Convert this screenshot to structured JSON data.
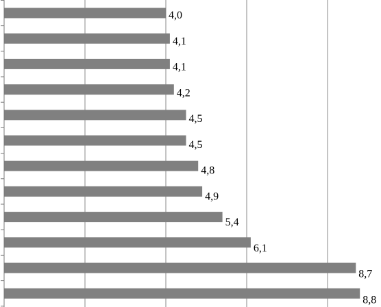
{
  "chart_data": {
    "type": "bar",
    "orientation": "horizontal",
    "title": "",
    "xlabel": "",
    "ylabel": "",
    "values": [
      4.0,
      4.1,
      4.1,
      4.2,
      4.5,
      4.5,
      4.8,
      4.9,
      5.4,
      6.1,
      8.7,
      8.8
    ],
    "labels": [
      "4,0",
      "4,1",
      "4,1",
      "4,2",
      "4,5",
      "4,5",
      "4,8",
      "4,9",
      "5,4",
      "6,1",
      "8,7",
      "8,8"
    ],
    "xlim": [
      0,
      9.4
    ],
    "grid": "vertical",
    "gridlines_at": [
      2,
      4,
      6,
      8
    ],
    "bar_color": "#808080",
    "legend": "none"
  }
}
